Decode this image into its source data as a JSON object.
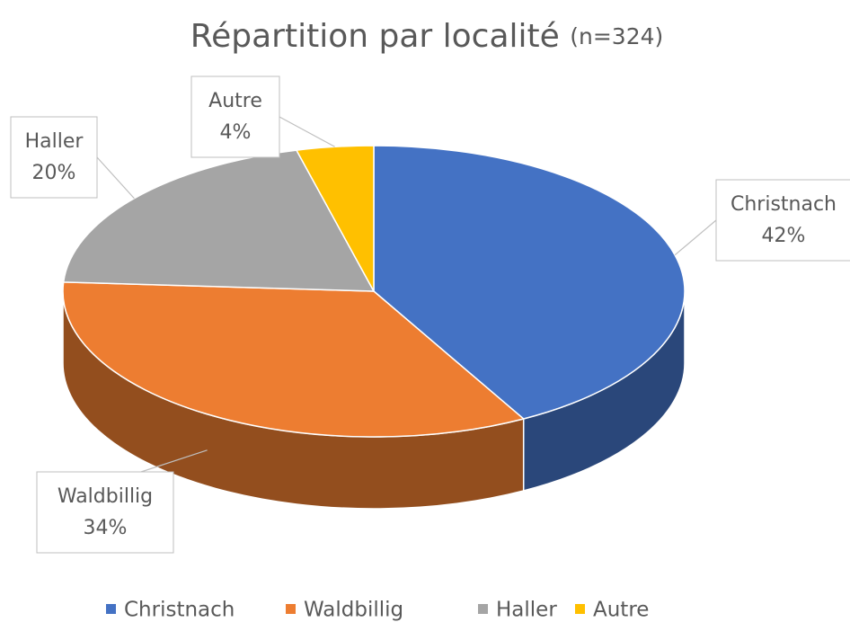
{
  "chart_data": {
    "type": "pie",
    "title": "Répartition par localité",
    "subtitle": "(n=324)",
    "categories": [
      "Christnach",
      "Waldbillig",
      "Haller",
      "Autre"
    ],
    "values": [
      42,
      34,
      20,
      4
    ],
    "value_labels": [
      "42%",
      "34%",
      "20%",
      "4%"
    ],
    "colors": [
      "#4472c4",
      "#ed7d31",
      "#a5a5a5",
      "#ffc000"
    ],
    "legend": "bottom"
  }
}
